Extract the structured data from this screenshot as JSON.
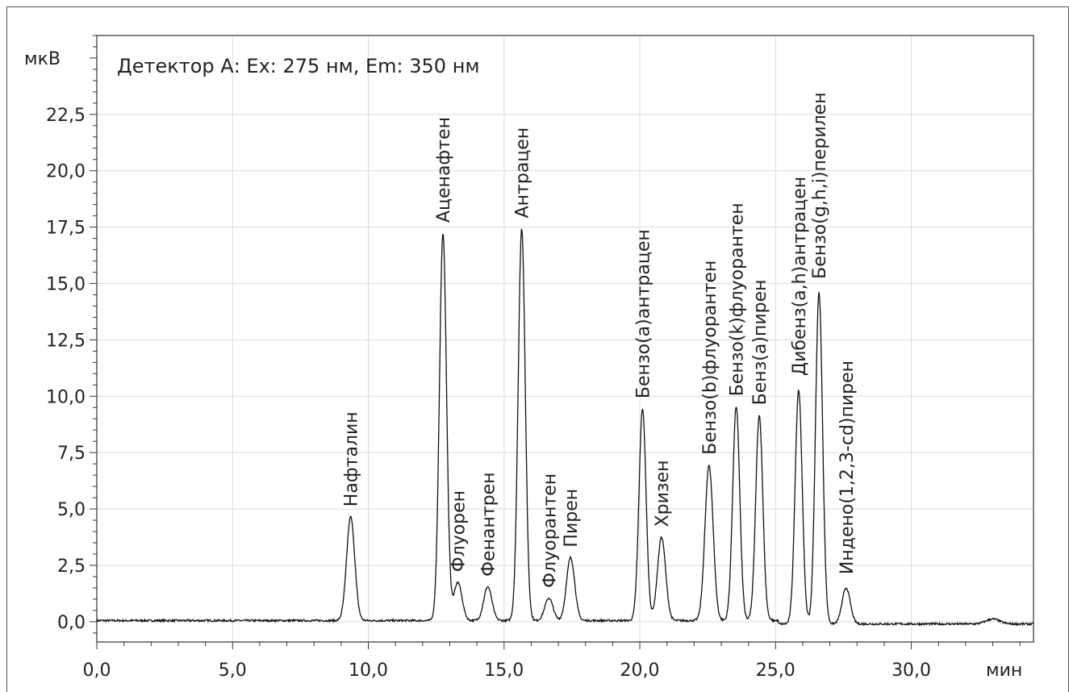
{
  "chart_data": {
    "type": "line",
    "ylabel": "мкВ",
    "xlabel": "мин",
    "annotation": "Детектор А: Ex: 275 нм, Em: 350 нм",
    "xlim": [
      0,
      34.5
    ],
    "ylim": [
      -0.9,
      26
    ],
    "x_ticks": [
      0,
      5,
      10,
      15,
      20,
      25,
      30
    ],
    "x_tick_labels": [
      "0,0",
      "5,0",
      "10,0",
      "15,0",
      "20,0",
      "25,0",
      "30,0"
    ],
    "y_ticks": [
      0,
      2.5,
      5,
      7.5,
      10,
      12.5,
      15,
      17.5,
      20,
      22.5
    ],
    "y_tick_labels": [
      "0,0",
      "2,5",
      "5,0",
      "7,5",
      "10,0",
      "12,5",
      "15,0",
      "17,5",
      "20,0",
      "22,5"
    ],
    "grid": true,
    "peaks": [
      {
        "name": "Нафталин",
        "rt": 9.35,
        "height": 4.6
      },
      {
        "name": "Аценафтен",
        "rt": 12.75,
        "height": 17.2
      },
      {
        "name": "Флуорен",
        "rt": 13.3,
        "height": 1.7
      },
      {
        "name": "Фенантрен",
        "rt": 14.4,
        "height": 1.5
      },
      {
        "name": "Антрацен",
        "rt": 15.65,
        "height": 17.4
      },
      {
        "name": "Флуорантен",
        "rt": 16.65,
        "height": 1.0
      },
      {
        "name": "Пирен",
        "rt": 17.45,
        "height": 2.8
      },
      {
        "name": "Бензо(a)антрацен",
        "rt": 20.1,
        "height": 9.4
      },
      {
        "name": "Хризен",
        "rt": 20.8,
        "height": 3.7
      },
      {
        "name": "Бензо(b)флуорантен",
        "rt": 22.55,
        "height": 6.9
      },
      {
        "name": "Бензо(k)флуорантен",
        "rt": 23.55,
        "height": 9.5
      },
      {
        "name": "Бенз(a)пирен",
        "rt": 24.4,
        "height": 9.1
      },
      {
        "name": "Дибенз(a,h)антрацен",
        "rt": 25.85,
        "height": 10.4
      },
      {
        "name": "Бензо(g,h,i)перилен",
        "rt": 26.6,
        "height": 14.7
      },
      {
        "name": "Индено(1,2,3-cd)пирен",
        "rt": 27.6,
        "height": 1.6
      }
    ]
  }
}
